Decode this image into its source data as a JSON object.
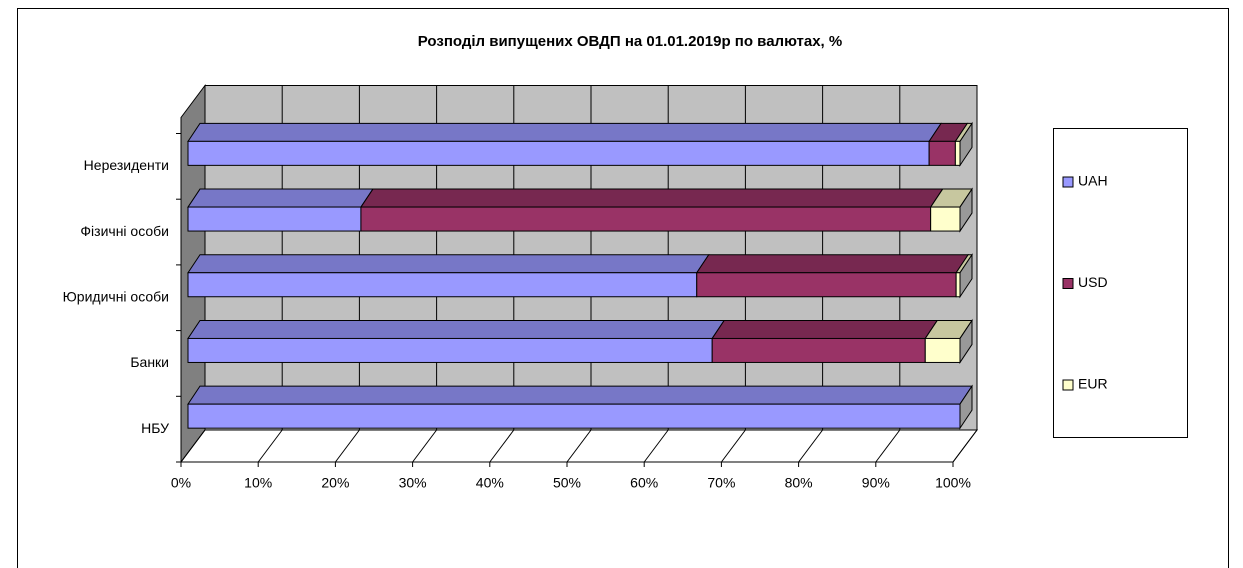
{
  "chart_data": {
    "type": "bar3d_stacked_horizontal",
    "title": "Розподіл випущених ОВДП на 01.01.2019р по валютах, %",
    "categories": [
      "Нерезиденти",
      "Фізичні особи",
      "Юридичні особи",
      "Банки",
      "НБУ"
    ],
    "series": [
      {
        "name": "UAH",
        "color": "#9999ff",
        "values": [
          96.0,
          22.4,
          65.9,
          67.9,
          100
        ]
      },
      {
        "name": "USD",
        "color": "#993366",
        "values": [
          3.4,
          73.8,
          33.6,
          27.6,
          0
        ]
      },
      {
        "name": "EUR",
        "color": "#ffffcc",
        "values": [
          0.6,
          3.8,
          0.5,
          4.5,
          0
        ]
      }
    ],
    "xlim": [
      0,
      100
    ],
    "xticks": [
      {
        "value": 0,
        "label": "0%"
      },
      {
        "value": 10,
        "label": "10%"
      },
      {
        "value": 20,
        "label": "20%"
      },
      {
        "value": 30,
        "label": "30%"
      },
      {
        "value": 40,
        "label": "40%"
      },
      {
        "value": 50,
        "label": "50%"
      },
      {
        "value": 60,
        "label": "60%"
      },
      {
        "value": 70,
        "label": "70%"
      },
      {
        "value": 80,
        "label": "80%"
      },
      {
        "value": 90,
        "label": "90%"
      },
      {
        "value": 100,
        "label": "100%"
      }
    ],
    "grid": true,
    "legend": "right"
  }
}
